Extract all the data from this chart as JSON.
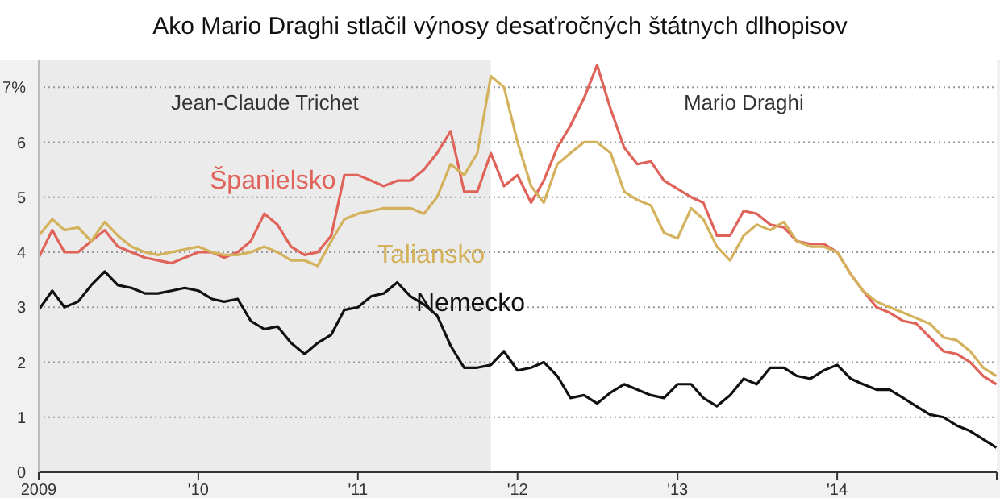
{
  "chart_data": {
    "type": "line",
    "title": "Ako Mario Draghi stlačil výnosy desaťročných štátnych dlhopisov",
    "x": [
      "2009-01-01",
      "2009-02-01",
      "2009-03-01",
      "2009-04-01",
      "2009-05-01",
      "2009-06-01",
      "2009-07-01",
      "2009-08-01",
      "2009-09-01",
      "2009-10-01",
      "2009-11-01",
      "2009-12-01",
      "2010-01-01",
      "2010-02-01",
      "2010-03-01",
      "2010-04-01",
      "2010-05-01",
      "2010-06-01",
      "2010-07-01",
      "2010-08-01",
      "2010-09-01",
      "2010-10-01",
      "2010-11-01",
      "2010-12-01",
      "2011-01-01",
      "2011-02-01",
      "2011-03-01",
      "2011-04-01",
      "2011-05-01",
      "2011-06-01",
      "2011-07-01",
      "2011-08-01",
      "2011-09-01",
      "2011-10-01",
      "2011-11-01",
      "2011-12-01",
      "2012-01-01",
      "2012-02-01",
      "2012-03-01",
      "2012-04-01",
      "2012-05-01",
      "2012-06-01",
      "2012-07-01",
      "2012-08-01",
      "2012-09-01",
      "2012-10-01",
      "2012-11-01",
      "2012-12-01",
      "2013-01-01",
      "2013-02-01",
      "2013-03-01",
      "2013-04-01",
      "2013-05-01",
      "2013-06-01",
      "2013-07-01",
      "2013-08-01",
      "2013-09-01",
      "2013-10-01",
      "2013-11-01",
      "2013-12-01",
      "2014-01-01",
      "2014-02-01",
      "2014-03-01",
      "2014-04-01",
      "2014-05-01",
      "2014-06-01",
      "2014-07-01",
      "2014-08-01",
      "2014-09-01",
      "2014-10-01",
      "2014-11-01",
      "2014-12-01",
      "2014-12-31"
    ],
    "series": [
      {
        "name": "Španielsko",
        "color": "#e0635a",
        "values": [
          3.9,
          4.4,
          4.0,
          4.0,
          4.2,
          4.4,
          4.1,
          4.0,
          3.9,
          3.85,
          3.8,
          3.9,
          4.0,
          4.0,
          3.9,
          4.0,
          4.2,
          4.7,
          4.5,
          4.1,
          3.95,
          4.0,
          4.3,
          5.4,
          5.4,
          5.3,
          5.2,
          5.3,
          5.3,
          5.5,
          5.8,
          6.2,
          5.1,
          5.1,
          5.8,
          5.2,
          5.4,
          4.9,
          5.3,
          5.9,
          6.3,
          6.8,
          7.4,
          6.6,
          5.9,
          5.6,
          5.65,
          5.3,
          5.15,
          5.0,
          4.9,
          4.3,
          4.3,
          4.75,
          4.7,
          4.5,
          4.45,
          4.2,
          4.15,
          4.15,
          4.0,
          3.6,
          3.3,
          3.0,
          2.9,
          2.75,
          2.7,
          2.45,
          2.2,
          2.15,
          2.0,
          1.75,
          1.6
        ]
      },
      {
        "name": "Taliansko",
        "color": "#d4b25c",
        "values": [
          4.3,
          4.6,
          4.4,
          4.45,
          4.2,
          4.55,
          4.3,
          4.1,
          4.0,
          3.95,
          4.0,
          4.05,
          4.1,
          4.0,
          3.95,
          3.95,
          4.0,
          4.1,
          4.0,
          3.85,
          3.85,
          3.75,
          4.2,
          4.6,
          4.7,
          4.75,
          4.8,
          4.8,
          4.8,
          4.7,
          5.0,
          5.6,
          5.4,
          5.8,
          7.2,
          7.0,
          6.0,
          5.2,
          4.9,
          5.6,
          5.8,
          6.0,
          6.0,
          5.8,
          5.1,
          4.95,
          4.85,
          4.35,
          4.25,
          4.8,
          4.6,
          4.1,
          3.85,
          4.3,
          4.5,
          4.4,
          4.55,
          4.2,
          4.1,
          4.1,
          4.0,
          3.6,
          3.3,
          3.1,
          3.0,
          2.9,
          2.8,
          2.7,
          2.45,
          2.4,
          2.2,
          1.9,
          1.75
        ]
      },
      {
        "name": "Nemecko",
        "color": "#111111",
        "values": [
          2.95,
          3.3,
          3.0,
          3.1,
          3.4,
          3.65,
          3.4,
          3.35,
          3.25,
          3.25,
          3.3,
          3.35,
          3.3,
          3.15,
          3.1,
          3.15,
          2.75,
          2.6,
          2.65,
          2.35,
          2.15,
          2.35,
          2.5,
          2.95,
          3.0,
          3.2,
          3.25,
          3.45,
          3.2,
          3.05,
          2.85,
          2.3,
          1.9,
          1.9,
          1.95,
          2.2,
          1.85,
          1.9,
          2.0,
          1.75,
          1.35,
          1.4,
          1.25,
          1.45,
          1.6,
          1.5,
          1.4,
          1.35,
          1.6,
          1.6,
          1.35,
          1.2,
          1.4,
          1.7,
          1.6,
          1.9,
          1.9,
          1.75,
          1.7,
          1.85,
          1.95,
          1.7,
          1.6,
          1.5,
          1.5,
          1.35,
          1.2,
          1.05,
          1.0,
          0.85,
          0.75,
          0.6,
          0.45
        ]
      }
    ],
    "xlim": [
      "2009-01-01",
      "2015-01-01"
    ],
    "xticks": [
      {
        "value": "2009-01-01",
        "label": "2009"
      },
      {
        "value": "2010-01-01",
        "label": "'10"
      },
      {
        "value": "2011-01-01",
        "label": "'11"
      },
      {
        "value": "2012-01-01",
        "label": "'12"
      },
      {
        "value": "2013-01-01",
        "label": "'13"
      },
      {
        "value": "2014-01-01",
        "label": "'14"
      },
      {
        "value": "2015-01-01",
        "label": null
      }
    ],
    "ylim": [
      0,
      7.5
    ],
    "yticks": [
      0,
      1,
      2,
      3,
      4,
      5,
      6,
      {
        "value": 7,
        "label": "7%"
      }
    ],
    "grid": "y",
    "bands": [
      {
        "axis": "x",
        "from": "2009-01-01",
        "to": "2011-11-01",
        "label": "Jean-Claude Trichet",
        "color": "#ebebeb"
      },
      {
        "axis": "x",
        "from": "2011-11-01",
        "to": "2015-01-01",
        "label": "Mario Draghi",
        "color": "#ffffff"
      }
    ]
  }
}
